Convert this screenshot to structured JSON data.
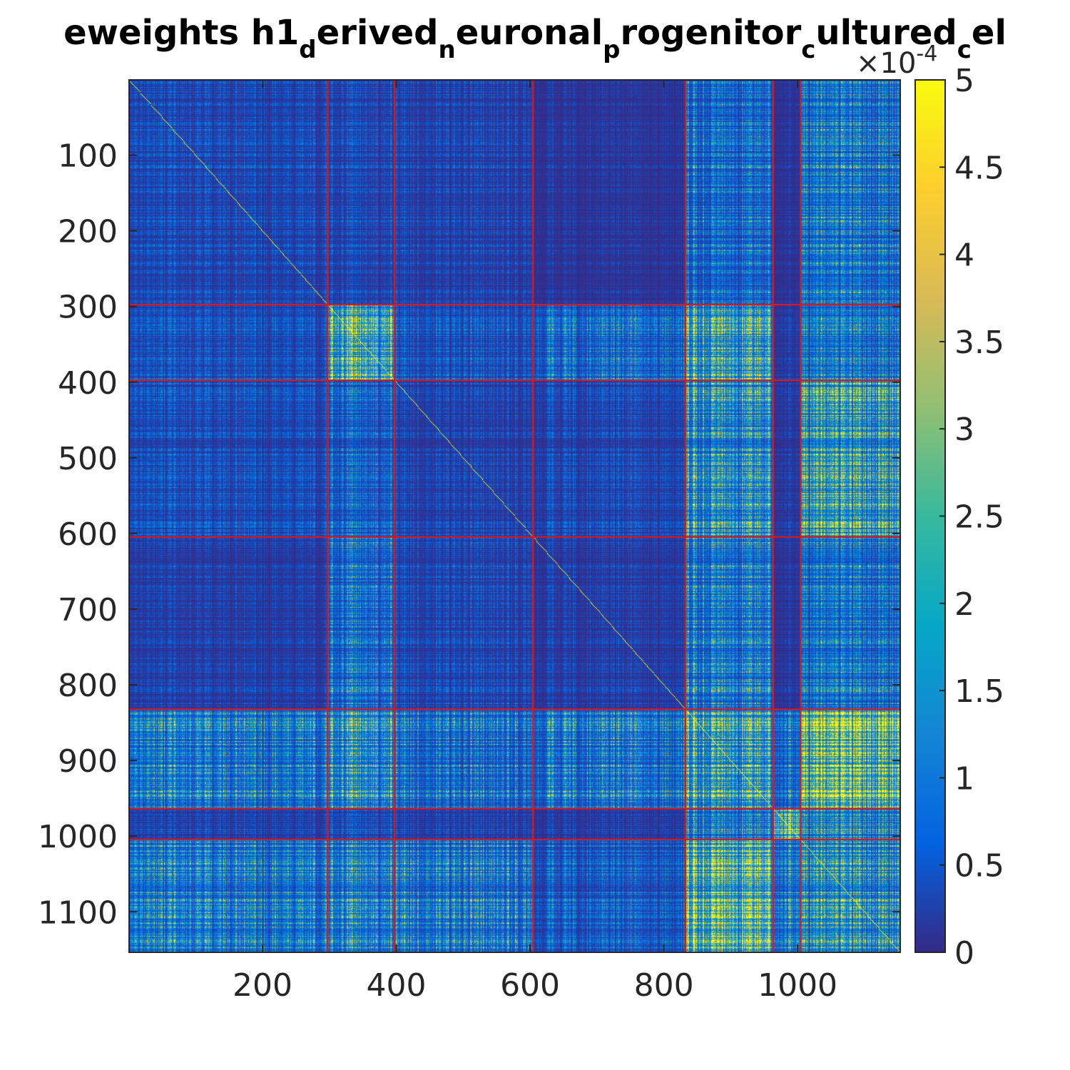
{
  "chart_data": {
    "type": "heatmap",
    "title": {
      "segments": [
        {
          "text": "eweights h1",
          "sub": false
        },
        {
          "text": "d",
          "sub": true
        },
        {
          "text": "erived",
          "sub": false
        },
        {
          "text": "n",
          "sub": true
        },
        {
          "text": "euronal",
          "sub": false
        },
        {
          "text": "p",
          "sub": true
        },
        {
          "text": "rogenitor",
          "sub": false
        },
        {
          "text": "c",
          "sub": true
        },
        {
          "text": "ultured",
          "sub": false
        },
        {
          "text": "c",
          "sub": true
        },
        {
          "text": "el",
          "sub": false
        }
      ]
    },
    "n": 1153,
    "xlim": [
      0.5,
      1153.5
    ],
    "ylim": [
      0.5,
      1153.5
    ],
    "x_ticks": [
      200,
      400,
      600,
      800,
      1000
    ],
    "x_tick_labels": [
      "200",
      "400",
      "600",
      "800",
      "1000"
    ],
    "y_ticks": [
      100,
      200,
      300,
      400,
      500,
      600,
      700,
      800,
      900,
      1000,
      1100
    ],
    "y_tick_labels": [
      "100",
      "200",
      "300",
      "400",
      "500",
      "600",
      "700",
      "800",
      "900",
      "1000",
      "1100"
    ],
    "y_direction": "reversed",
    "cluster_boundaries": [
      297,
      397,
      604,
      832,
      963,
      1004
    ],
    "cluster_boundary_color": "#d7191c",
    "color_range": [
      0,
      0.0005
    ],
    "colorbar": {
      "ticks": [
        0,
        0.5,
        1,
        1.5,
        2,
        2.5,
        3,
        3.5,
        4,
        4.5,
        5
      ],
      "tick_labels": [
        "0",
        "0.5",
        "1",
        "1.5",
        "2",
        "2.5",
        "3",
        "3.5",
        "4",
        "4.5",
        "5"
      ],
      "multiplier_base": "×10",
      "multiplier_exponent": "-4"
    },
    "colormap": "parula",
    "colormap_stops": [
      "#352a87",
      "#0363e1",
      "#1485d4",
      "#06a7c6",
      "#38b99e",
      "#92bf73",
      "#d9ba56",
      "#fcce2e",
      "#f9fb0e"
    ],
    "cluster_block_intensity": [
      [
        0.12,
        0.12,
        0.1,
        0.05,
        0.28,
        0.04,
        0.32
      ],
      [
        0.14,
        0.75,
        0.16,
        0.28,
        0.62,
        0.06,
        0.3
      ],
      [
        0.14,
        0.24,
        0.1,
        0.12,
        0.52,
        0.06,
        0.58
      ],
      [
        0.08,
        0.32,
        0.12,
        0.08,
        0.38,
        0.05,
        0.3
      ],
      [
        0.38,
        0.55,
        0.32,
        0.38,
        0.65,
        0.3,
        0.9
      ],
      [
        0.1,
        0.16,
        0.1,
        0.08,
        0.42,
        0.98,
        0.45
      ],
      [
        0.4,
        0.45,
        0.4,
        0.22,
        0.92,
        0.4,
        0.5
      ]
    ],
    "grid": false,
    "legend": "none"
  }
}
